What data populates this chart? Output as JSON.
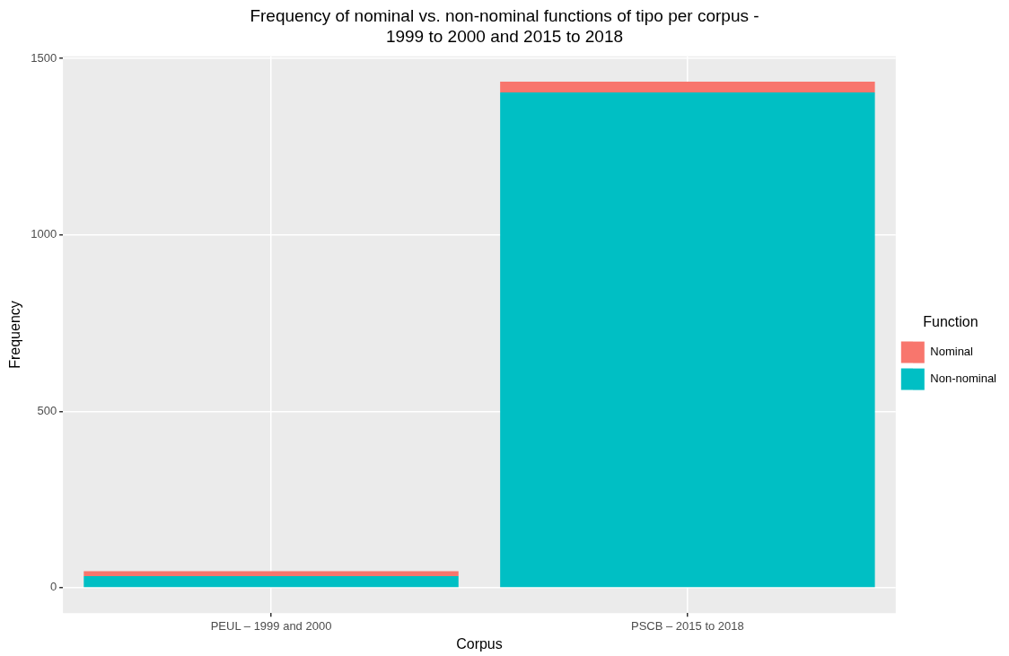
{
  "chart_data": {
    "type": "bar",
    "title": "Frequency of nominal vs. non-nominal functions of tipo per corpus -\n1999 to 2000 and 2015 to 2018",
    "xlabel": "Corpus",
    "ylabel": "Frequency",
    "legend_title": "Function",
    "categories": [
      "PEUL – 1999 and 2000",
      "PSCB – 2015 to 2018"
    ],
    "series": [
      {
        "name": "Non-nominal",
        "color": "#00bfc4",
        "values": [
          33,
          1404
        ]
      },
      {
        "name": "Nominal",
        "color": "#f8766d",
        "values": [
          14,
          30
        ]
      }
    ],
    "stacked": true,
    "ylim": [
      -72,
      1506
    ],
    "yticks": [
      0,
      500,
      1000,
      1500
    ],
    "grid": true,
    "legend": "right"
  }
}
